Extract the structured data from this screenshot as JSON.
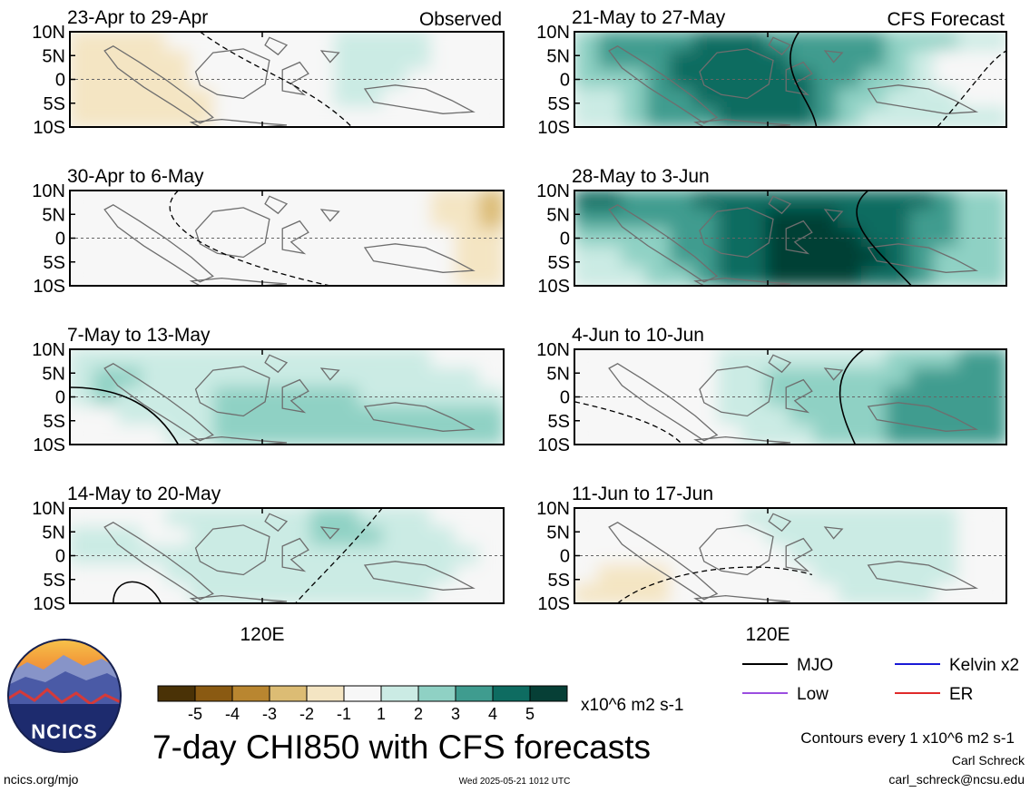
{
  "figure": {
    "title": "7-day CHI850 with CFS forecasts",
    "colorbar_units": "x10^6 m2 s-1",
    "contour_note": "Contours every 1 x10^6 m2 s-1",
    "author_name": "Carl Schreck",
    "author_email": "carl_schreck@ncsu.edu",
    "website": "ncics.org/mjo",
    "timestamp": "Wed 2025-05-21 1012 UTC",
    "logo_text": "NCICS",
    "x_tick_label": "120E",
    "y_tick_labels": [
      "10N",
      "5N",
      "0",
      "5S",
      "10S"
    ],
    "left_column_tag": "Observed",
    "right_column_tag": "CFS Forecast"
  },
  "legend": [
    {
      "label": "MJO",
      "color": "#000000"
    },
    {
      "label": "Kelvin x2",
      "color": "#1a1ad6"
    },
    {
      "label": "Low",
      "color": "#9b4ee0"
    },
    {
      "label": "ER",
      "color": "#e02a2a"
    }
  ],
  "colorbar": {
    "tick_labels": [
      "-5",
      "-4",
      "-3",
      "-2",
      "-1",
      "1",
      "2",
      "3",
      "4",
      "5"
    ],
    "colors": [
      "#4a3206",
      "#8a5a12",
      "#b98630",
      "#dcbc74",
      "#f4e5c3",
      "#f7f7f7",
      "#cbebe4",
      "#8fd1c4",
      "#3f9c8f",
      "#0e6c61",
      "#063f36"
    ]
  },
  "chart_data": [
    {
      "type": "heatmap",
      "title": "23-Apr to 29-Apr",
      "source": "Observed",
      "ylim": [
        -10,
        10
      ],
      "xtick": "120E",
      "levels": [
        [
          -1,
          -1,
          -1,
          -1,
          0,
          0,
          0,
          0,
          0,
          0,
          0,
          1,
          1,
          1,
          1,
          0,
          0,
          0
        ],
        [
          -1,
          -1,
          -1,
          -1,
          -1,
          0,
          0,
          0,
          0,
          0,
          0,
          1,
          1,
          1,
          1,
          0,
          0,
          0
        ],
        [
          -1,
          -1,
          -1,
          -1,
          -1,
          0,
          0,
          0,
          0,
          0,
          0,
          1,
          1,
          1,
          0,
          0,
          0,
          0
        ],
        [
          -1,
          -1,
          -1,
          -1,
          -1,
          -1,
          0,
          0,
          0,
          0,
          0,
          1,
          1,
          0,
          0,
          0,
          0,
          0
        ],
        [
          -1,
          -1,
          -1,
          -1,
          -1,
          -1,
          0,
          0,
          0,
          0,
          0,
          0,
          0,
          0,
          0,
          0,
          0,
          0
        ]
      ]
    },
    {
      "type": "heatmap",
      "title": "30-Apr to 6-May",
      "source": "Observed",
      "ylim": [
        -10,
        10
      ],
      "xtick": "120E",
      "levels": [
        [
          0,
          0,
          0,
          0,
          0,
          0,
          0,
          0,
          0,
          0,
          0,
          0,
          0,
          0,
          0,
          -1,
          -1,
          -2
        ],
        [
          0,
          0,
          0,
          0,
          0,
          0,
          0,
          0,
          0,
          0,
          0,
          0,
          0,
          0,
          0,
          -1,
          -1,
          -2
        ],
        [
          0,
          0,
          0,
          0,
          0,
          0,
          0,
          0,
          0,
          0,
          0,
          0,
          0,
          0,
          0,
          0,
          -1,
          -1
        ],
        [
          0,
          0,
          0,
          0,
          0,
          0,
          0,
          0,
          0,
          0,
          0,
          0,
          0,
          0,
          0,
          0,
          -1,
          -1
        ],
        [
          0,
          0,
          0,
          0,
          0,
          0,
          0,
          0,
          0,
          0,
          0,
          0,
          0,
          0,
          0,
          0,
          -1,
          -1
        ]
      ]
    },
    {
      "type": "heatmap",
      "title": "7-May to 13-May",
      "source": "Observed",
      "ylim": [
        -10,
        10
      ],
      "xtick": "120E",
      "levels": [
        [
          1,
          1,
          1,
          1,
          1,
          1,
          1,
          1,
          1,
          1,
          1,
          1,
          1,
          1,
          1,
          0,
          0,
          0
        ],
        [
          1,
          2,
          2,
          1,
          1,
          1,
          1,
          1,
          1,
          1,
          1,
          1,
          1,
          1,
          1,
          1,
          1,
          0
        ],
        [
          1,
          2,
          1,
          1,
          1,
          1,
          2,
          2,
          2,
          2,
          2,
          2,
          1,
          1,
          1,
          1,
          1,
          1
        ],
        [
          0,
          0,
          1,
          1,
          1,
          1,
          2,
          2,
          2,
          2,
          2,
          2,
          2,
          2,
          2,
          2,
          2,
          2
        ],
        [
          0,
          0,
          0,
          0,
          1,
          1,
          2,
          2,
          2,
          2,
          2,
          2,
          2,
          2,
          2,
          2,
          2,
          2
        ]
      ]
    },
    {
      "type": "heatmap",
      "title": "14-May to 20-May",
      "source": "Observed",
      "ylim": [
        -10,
        10
      ],
      "xtick": "120E",
      "levels": [
        [
          0,
          0,
          0,
          0,
          1,
          1,
          1,
          1,
          1,
          1,
          2,
          2,
          1,
          1,
          1,
          0,
          0,
          0
        ],
        [
          1,
          1,
          1,
          0,
          0,
          1,
          1,
          1,
          1,
          1,
          2,
          2,
          2,
          1,
          1,
          1,
          0,
          0
        ],
        [
          1,
          1,
          1,
          1,
          1,
          1,
          1,
          1,
          1,
          1,
          1,
          1,
          1,
          1,
          1,
          1,
          1,
          0
        ],
        [
          0,
          0,
          0,
          0,
          1,
          1,
          1,
          1,
          1,
          1,
          1,
          1,
          1,
          1,
          1,
          1,
          0,
          0
        ],
        [
          0,
          0,
          0,
          0,
          0,
          1,
          1,
          1,
          1,
          1,
          1,
          1,
          1,
          1,
          1,
          0,
          0,
          0
        ]
      ]
    },
    {
      "type": "heatmap",
      "title": "21-May to 27-May",
      "source": "CFS Forecast",
      "ylim": [
        -10,
        10
      ],
      "xtick": "120E",
      "levels": [
        [
          2,
          3,
          3,
          3,
          3,
          4,
          4,
          4,
          3,
          3,
          3,
          3,
          3,
          2,
          2,
          2,
          1,
          1
        ],
        [
          2,
          3,
          3,
          3,
          4,
          4,
          4,
          4,
          4,
          3,
          3,
          3,
          3,
          2,
          1,
          0,
          0,
          0
        ],
        [
          2,
          2,
          2,
          3,
          4,
          4,
          4,
          4,
          4,
          4,
          3,
          3,
          2,
          2,
          1,
          0,
          0,
          0
        ],
        [
          1,
          1,
          2,
          3,
          3,
          4,
          4,
          4,
          4,
          4,
          3,
          2,
          2,
          1,
          1,
          1,
          0,
          0
        ],
        [
          1,
          1,
          2,
          3,
          3,
          3,
          4,
          4,
          4,
          4,
          3,
          2,
          1,
          1,
          1,
          1,
          1,
          1
        ]
      ]
    },
    {
      "type": "heatmap",
      "title": "28-May to 3-Jun",
      "source": "CFS Forecast",
      "ylim": [
        -10,
        10
      ],
      "xtick": "120E",
      "levels": [
        [
          4,
          4,
          3,
          3,
          3,
          4,
          4,
          4,
          4,
          4,
          4,
          4,
          4,
          4,
          4,
          3,
          2,
          2
        ],
        [
          3,
          3,
          3,
          3,
          3,
          3,
          4,
          4,
          5,
          5,
          5,
          4,
          4,
          4,
          3,
          3,
          2,
          2
        ],
        [
          2,
          2,
          2,
          2,
          3,
          3,
          4,
          4,
          5,
          5,
          5,
          5,
          4,
          4,
          3,
          3,
          2,
          2
        ],
        [
          1,
          1,
          2,
          2,
          3,
          3,
          4,
          4,
          5,
          5,
          5,
          5,
          5,
          4,
          3,
          2,
          2,
          2
        ],
        [
          1,
          1,
          1,
          2,
          2,
          3,
          4,
          4,
          5,
          5,
          5,
          5,
          4,
          4,
          3,
          2,
          2,
          2
        ]
      ]
    },
    {
      "type": "heatmap",
      "title": "4-Jun to 10-Jun",
      "source": "CFS Forecast",
      "ylim": [
        -10,
        10
      ],
      "xtick": "120E",
      "levels": [
        [
          0,
          0,
          0,
          0,
          0,
          0,
          1,
          1,
          1,
          1,
          1,
          1,
          1,
          2,
          2,
          2,
          3,
          3
        ],
        [
          0,
          0,
          0,
          0,
          0,
          0,
          1,
          1,
          2,
          2,
          2,
          2,
          2,
          2,
          3,
          3,
          3,
          3
        ],
        [
          0,
          0,
          0,
          0,
          0,
          0,
          1,
          1,
          2,
          2,
          2,
          2,
          2,
          3,
          3,
          3,
          3,
          3
        ],
        [
          0,
          0,
          0,
          0,
          0,
          0,
          1,
          1,
          1,
          2,
          2,
          2,
          2,
          3,
          3,
          3,
          3,
          3
        ],
        [
          0,
          0,
          0,
          0,
          0,
          0,
          0,
          1,
          1,
          1,
          2,
          2,
          2,
          3,
          3,
          3,
          3,
          3
        ]
      ]
    },
    {
      "type": "heatmap",
      "title": "11-Jun to 17-Jun",
      "source": "CFS Forecast",
      "ylim": [
        -10,
        10
      ],
      "xtick": "120E",
      "levels": [
        [
          0,
          0,
          0,
          0,
          0,
          0,
          0,
          1,
          1,
          1,
          1,
          1,
          1,
          1,
          1,
          1,
          0,
          0
        ],
        [
          0,
          0,
          0,
          0,
          0,
          0,
          0,
          0,
          1,
          1,
          1,
          1,
          1,
          1,
          1,
          1,
          0,
          0
        ],
        [
          0,
          0,
          0,
          0,
          0,
          0,
          0,
          0,
          0,
          1,
          1,
          1,
          1,
          1,
          1,
          1,
          0,
          0
        ],
        [
          0,
          -1,
          -1,
          -1,
          0,
          0,
          0,
          0,
          0,
          0,
          1,
          1,
          1,
          1,
          1,
          1,
          0,
          0
        ],
        [
          -1,
          -1,
          -1,
          -1,
          0,
          0,
          0,
          0,
          0,
          0,
          0,
          1,
          1,
          1,
          1,
          0,
          0,
          0
        ]
      ]
    }
  ]
}
